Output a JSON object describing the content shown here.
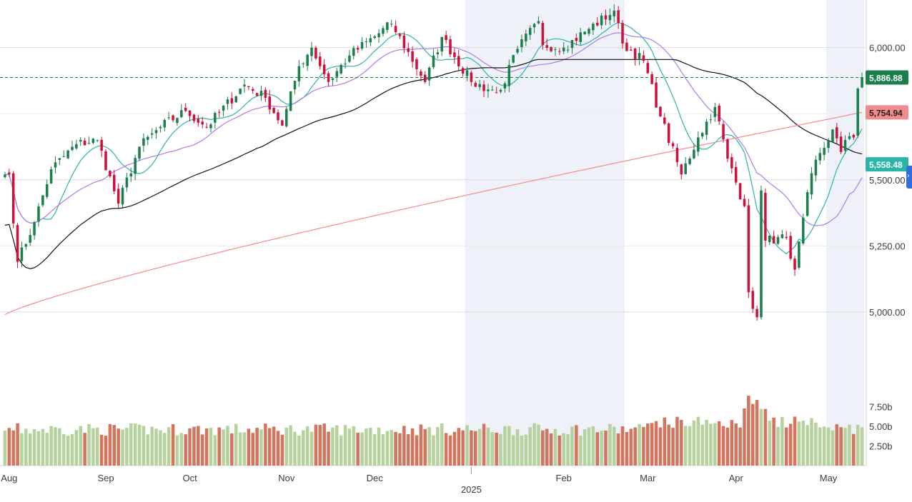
{
  "chart_data": {
    "type": "candlestick",
    "x_start": "2024-08",
    "x_end": "2025-05",
    "y_ticks": [
      "6,000.00",
      "5,500.00",
      "5,250.00",
      "5,000.00"
    ],
    "volume_ticks": [
      "7.50b",
      "5.00b",
      "2.50b"
    ],
    "x_ticks": [
      "Aug",
      "Sep",
      "Oct",
      "Nov",
      "Dec",
      "Feb",
      "Mar",
      "Apr",
      "May"
    ],
    "year_label": "2025",
    "last_price": "5,886.88",
    "price_tags": [
      {
        "label": "5,886.88",
        "value": 5886.88,
        "color": "#1a7f4b"
      },
      {
        "label": "5,754.94",
        "value": 5754.94,
        "color": "#f28b8b",
        "text_color": "#222222"
      },
      {
        "label": "5,558.48",
        "value": 5558.48,
        "color": "#2bb5a6"
      }
    ],
    "ohlc_anchors": [
      {
        "d": "2024-08-01",
        "c": 5520
      },
      {
        "d": "2024-08-05",
        "c": 5190
      },
      {
        "d": "2024-08-09",
        "c": 5340
      },
      {
        "d": "2024-08-15",
        "c": 5540
      },
      {
        "d": "2024-08-23",
        "c": 5635
      },
      {
        "d": "2024-08-30",
        "c": 5650
      },
      {
        "d": "2024-09-06",
        "c": 5410
      },
      {
        "d": "2024-09-13",
        "c": 5625
      },
      {
        "d": "2024-09-20",
        "c": 5700
      },
      {
        "d": "2024-09-30",
        "c": 5760
      },
      {
        "d": "2024-10-07",
        "c": 5700
      },
      {
        "d": "2024-10-18",
        "c": 5860
      },
      {
        "d": "2024-10-25",
        "c": 5810
      },
      {
        "d": "2024-10-31",
        "c": 5705
      },
      {
        "d": "2024-11-06",
        "c": 5930
      },
      {
        "d": "2024-11-11",
        "c": 6000
      },
      {
        "d": "2024-11-15",
        "c": 5870
      },
      {
        "d": "2024-11-22",
        "c": 5970
      },
      {
        "d": "2024-12-06",
        "c": 6090
      },
      {
        "d": "2024-12-18",
        "c": 5870
      },
      {
        "d": "2024-12-24",
        "c": 6040
      },
      {
        "d": "2025-01-02",
        "c": 5870
      },
      {
        "d": "2025-01-10",
        "c": 5830
      },
      {
        "d": "2025-01-13",
        "c": 5840
      },
      {
        "d": "2025-01-17",
        "c": 5995
      },
      {
        "d": "2025-01-24",
        "c": 6100
      },
      {
        "d": "2025-01-27",
        "c": 6010
      },
      {
        "d": "2025-02-03",
        "c": 6000
      },
      {
        "d": "2025-02-10",
        "c": 6060
      },
      {
        "d": "2025-02-19",
        "c": 6140
      },
      {
        "d": "2025-02-21",
        "c": 6015
      },
      {
        "d": "2025-02-28",
        "c": 5950
      },
      {
        "d": "2025-03-06",
        "c": 5740
      },
      {
        "d": "2025-03-13",
        "c": 5520
      },
      {
        "d": "2025-03-19",
        "c": 5660
      },
      {
        "d": "2025-03-25",
        "c": 5775
      },
      {
        "d": "2025-03-28",
        "c": 5580
      },
      {
        "d": "2025-04-03",
        "c": 5400
      },
      {
        "d": "2025-04-04",
        "c": 5075
      },
      {
        "d": "2025-04-08",
        "c": 4980
      },
      {
        "d": "2025-04-09",
        "c": 5460
      },
      {
        "d": "2025-04-10",
        "c": 5270
      },
      {
        "d": "2025-04-17",
        "c": 5280
      },
      {
        "d": "2025-04-21",
        "c": 5160
      },
      {
        "d": "2025-04-25",
        "c": 5525
      },
      {
        "d": "2025-05-02",
        "c": 5690
      },
      {
        "d": "2025-05-06",
        "c": 5605
      },
      {
        "d": "2025-05-08",
        "c": 5665
      },
      {
        "d": "2025-05-09",
        "c": 5660
      },
      {
        "d": "2025-05-12",
        "c": 5845
      },
      {
        "d": "2025-05-13",
        "c": 5886.88
      }
    ],
    "volume_range_b": [
      3,
      9
    ],
    "moving_averages": [
      {
        "color": "#2bb5a6",
        "last": 5558.48
      },
      {
        "color": "#b07be8"
      },
      {
        "color": "#111111"
      },
      {
        "color": "#f28b8b",
        "last": 5754.94
      }
    ],
    "shaded_regions": [
      {
        "from": "2025-01-01",
        "to": "2025-02-21"
      },
      {
        "from": "2025-05-01",
        "to": "2025-05-13"
      }
    ],
    "colors": {
      "up": "#1a7f4b",
      "down": "#d0103a",
      "vol_up": "#b5d19c",
      "vol_down": "#d4745c"
    }
  },
  "navigation": {
    "scroll_icon": "chevron-right-icon",
    "scroll_glyph": "›"
  }
}
